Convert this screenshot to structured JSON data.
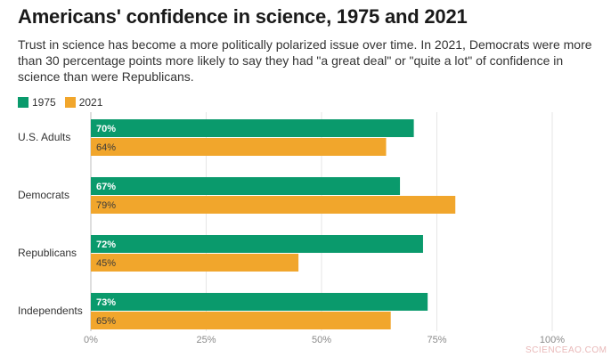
{
  "header": {
    "title": "Americans' confidence in science, 1975 and 2021",
    "subtitle": "Trust in science has become a more politically polarized issue over time. In 2021, Democrats were more than 30 percentage points more likely to say they had \"a great deal\" or \"quite a lot\" of confidence in science than were Republicans."
  },
  "watermark": "SCIENCEAO.COM",
  "colors": {
    "s1975": "#0a9a6c",
    "s2021": "#f1a62c",
    "grid": "#e6e6e6",
    "tick": "#8a8a8a",
    "category": "#333333"
  },
  "chart_data": {
    "type": "bar",
    "orientation": "horizontal",
    "categories": [
      "U.S. Adults",
      "Democrats",
      "Republicans",
      "Independents"
    ],
    "series": [
      {
        "name": "1975",
        "values": [
          70,
          67,
          72,
          73
        ],
        "labels": [
          "70%",
          "67%",
          "72%",
          "73%"
        ],
        "color": "#0a9a6c"
      },
      {
        "name": "2021",
        "values": [
          64,
          79,
          45,
          65
        ],
        "labels": [
          "64%",
          "79%",
          "45%",
          "65%"
        ],
        "color": "#f1a62c"
      }
    ],
    "xlim": [
      0,
      100
    ],
    "xticks": [
      0,
      25,
      50,
      75,
      100
    ],
    "xtick_labels": [
      "0%",
      "25%",
      "50%",
      "75%",
      "100%"
    ],
    "grid": true,
    "legend": "top-left"
  }
}
